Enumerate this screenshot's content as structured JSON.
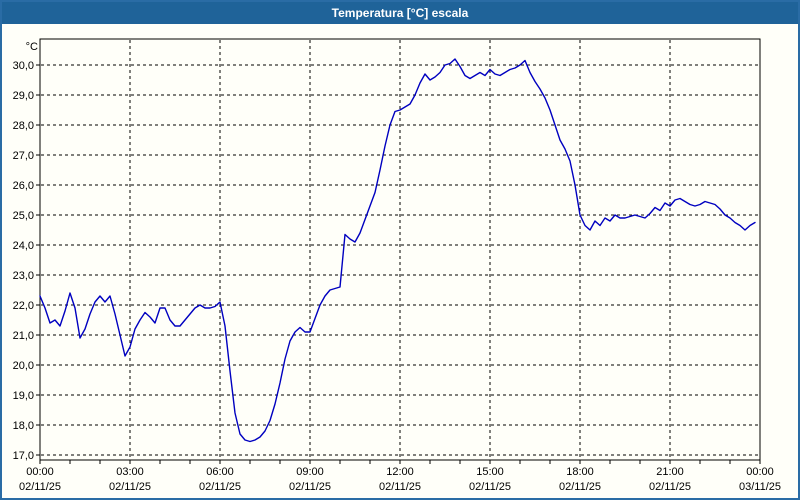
{
  "window": {
    "title": "Temperatura [°C] escala"
  },
  "colors": {
    "titlebar_bg": "#1F6399",
    "titlebar_text": "#FFFFFF",
    "window_border": "#2A6CA5",
    "panel_bg": "#FFFFF9",
    "plot_border": "#000000",
    "grid": "#000000",
    "line": "#0000C0",
    "label_text": "#000000"
  },
  "chart_data": {
    "type": "line",
    "title": "Temperatura [°C] escala",
    "grid": "dashed",
    "legend": "none",
    "y_axis": {
      "unit_label": "°C",
      "min": 17.0,
      "max": 30.0,
      "step": 1.0,
      "tick_labels": [
        "30,0",
        "29,0",
        "28,0",
        "27,0",
        "26,0",
        "25,0",
        "24,0",
        "23,0",
        "22,0",
        "21,0",
        "20,0",
        "19,0",
        "18,0",
        "17,0"
      ]
    },
    "x_axis": {
      "hours_between_labeled_ticks": 3,
      "minor_tick_every_hours": 1,
      "ticks": [
        {
          "time": "00:00",
          "date": "02/11/25"
        },
        {
          "time": "03:00",
          "date": "02/11/25"
        },
        {
          "time": "06:00",
          "date": "02/11/25"
        },
        {
          "time": "09:00",
          "date": "02/11/25"
        },
        {
          "time": "12:00",
          "date": "02/11/25"
        },
        {
          "time": "15:00",
          "date": "02/11/25"
        },
        {
          "time": "18:00",
          "date": "02/11/25"
        },
        {
          "time": "21:00",
          "date": "02/11/25"
        },
        {
          "time": "00:00",
          "date": "03/11/25"
        }
      ]
    },
    "series": [
      {
        "name": "Temperatura",
        "color": "#0000C0",
        "start": "00:00",
        "interval_minutes": 10,
        "values": [
          22.3,
          21.9,
          21.4,
          21.5,
          21.3,
          21.8,
          22.4,
          21.9,
          20.9,
          21.2,
          21.7,
          22.1,
          22.3,
          22.1,
          22.3,
          21.7,
          21.0,
          20.3,
          20.6,
          21.2,
          21.5,
          21.75,
          21.6,
          21.4,
          21.9,
          21.9,
          21.5,
          21.3,
          21.3,
          21.5,
          21.7,
          21.9,
          22.0,
          21.9,
          21.9,
          21.95,
          22.1,
          21.3,
          19.8,
          18.4,
          17.7,
          17.5,
          17.45,
          17.5,
          17.6,
          17.8,
          18.15,
          18.7,
          19.4,
          20.2,
          20.8,
          21.1,
          21.25,
          21.1,
          21.1,
          21.55,
          22.0,
          22.3,
          22.5,
          22.55,
          22.6,
          24.35,
          24.2,
          24.1,
          24.4,
          24.85,
          25.3,
          25.75,
          26.5,
          27.3,
          28.0,
          28.45,
          28.5,
          28.6,
          28.7,
          29.0,
          29.4,
          29.7,
          29.5,
          29.6,
          29.75,
          30.0,
          30.05,
          30.2,
          29.95,
          29.65,
          29.55,
          29.65,
          29.75,
          29.65,
          29.85,
          29.7,
          29.65,
          29.75,
          29.85,
          29.9,
          30.0,
          30.15,
          29.75,
          29.45,
          29.2,
          28.9,
          28.5,
          28.0,
          27.5,
          27.2,
          26.8,
          26.0,
          25.0,
          24.65,
          24.5,
          24.8,
          24.65,
          24.9,
          24.8,
          25.0,
          24.9,
          24.9,
          24.95,
          25.0,
          24.95,
          24.9,
          25.05,
          25.25,
          25.15,
          25.4,
          25.3,
          25.5,
          25.55,
          25.45,
          25.35,
          25.3,
          25.35,
          25.45,
          25.4,
          25.35,
          25.2,
          25.0,
          24.9,
          24.75,
          24.65,
          24.5,
          24.65,
          24.75
        ]
      }
    ]
  }
}
